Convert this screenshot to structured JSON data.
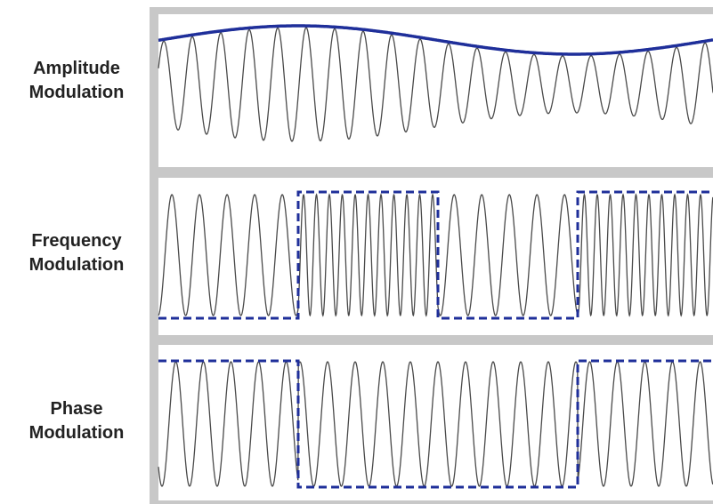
{
  "panels": [
    {
      "id": "am",
      "label_line1": "Amplitude",
      "label_line2": "Modulation"
    },
    {
      "id": "fm",
      "label_line1": "Frequency",
      "label_line2": "Modulation"
    },
    {
      "id": "pm",
      "label_line1": "Phase",
      "label_line2": "Modulation"
    }
  ],
  "colors": {
    "frame": "#c8c8c8",
    "panel_bg": "#ffffff",
    "carrier": "#4a4a4a",
    "modulating": "#1f2f9a"
  }
}
